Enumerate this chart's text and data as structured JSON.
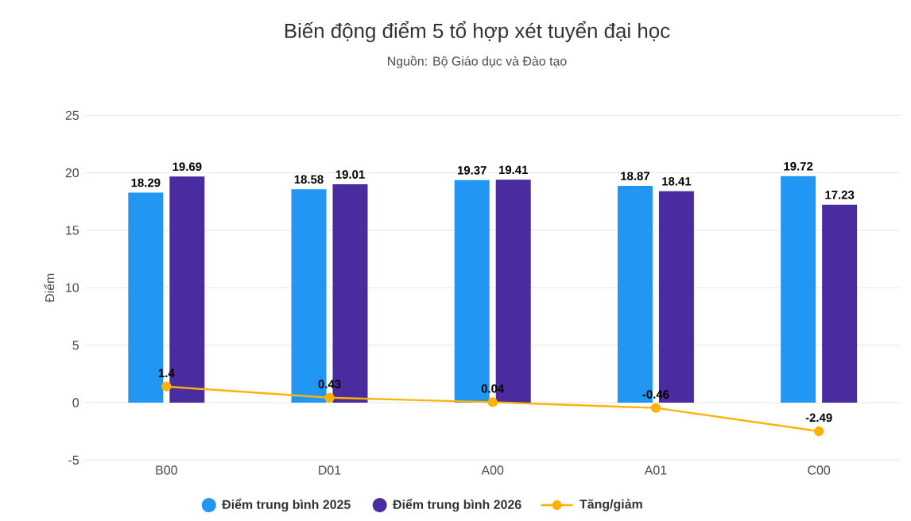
{
  "chart_data": {
    "type": "bar",
    "title": "Biến động điểm 5 tổ hợp xét tuyển đại học",
    "subtitle": "Nguồn: Bộ Giáo dục và Đào tạo",
    "ylabel": "Điểm",
    "categories": [
      "B00",
      "D01",
      "A00",
      "A01",
      "C00"
    ],
    "series": [
      {
        "name": "Điểm trung bình 2025",
        "color": "#2196f3",
        "values": [
          18.29,
          18.58,
          19.37,
          18.87,
          19.72
        ]
      },
      {
        "name": "Điểm trung bình 2026",
        "color": "#4a2ba0",
        "values": [
          19.69,
          19.01,
          19.41,
          18.41,
          17.23
        ]
      },
      {
        "name": "Tăng/giảm",
        "type": "line",
        "color": "#ffb300",
        "marker": "circle",
        "values": [
          1.4,
          0.43,
          0.04,
          -0.46,
          -2.49
        ]
      }
    ],
    "ylim": [
      -5,
      25
    ],
    "yticks": [
      -5,
      0,
      5,
      10,
      15,
      20,
      25
    ],
    "grid": "y",
    "legend": "bottom",
    "data_labels": true
  }
}
